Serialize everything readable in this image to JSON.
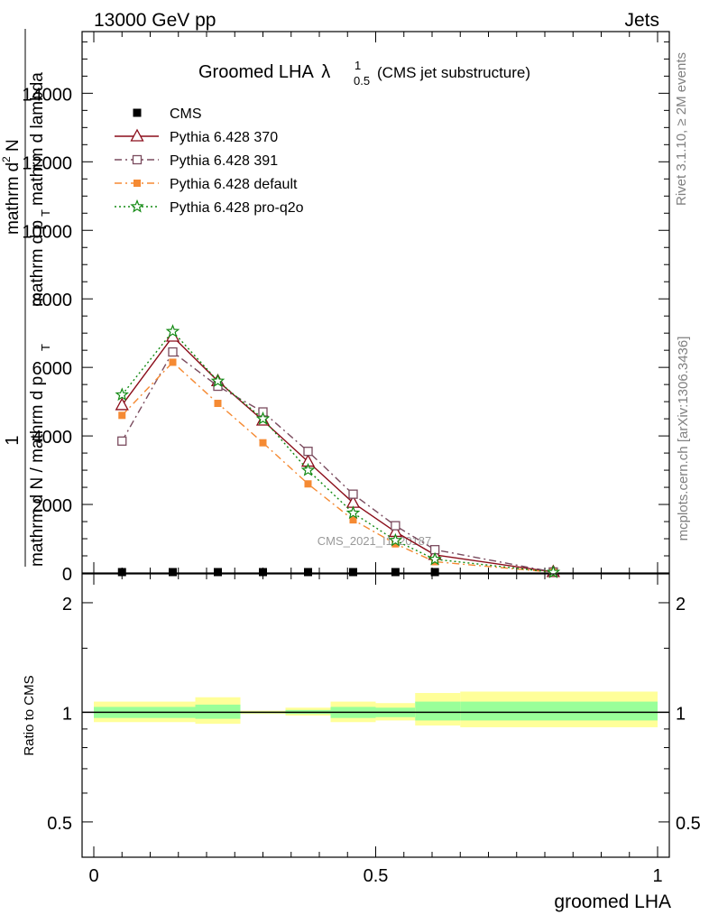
{
  "header": {
    "left": "13000 GeV pp",
    "right": "Jets"
  },
  "title": {
    "main": "Groomed LHA",
    "lambda": "λ",
    "sup": "1",
    "sub": "0.5",
    "suffix": "(CMS jet substructure)"
  },
  "ylabel_main": {
    "num1": "1",
    "den1": "mathrm d N / mathrm d p",
    "den1_sub": "T",
    "num2": "mathrm d",
    "num2_sup": "2",
    "num2_rest": "N",
    "den2": "mathrm d p",
    "den2_sub": "T",
    "den2_rest": " mathrm d lambda"
  },
  "ylabel_ratio": "Ratio to CMS",
  "xlabel": "groomed LHA",
  "side_right": "Rivet 3.1.10, ≥ 2M events",
  "side_right2": "mcplots.cern.ch [arXiv:1306.3436]",
  "watermark": "CMS_2021_I1920187",
  "colors": {
    "pythia370": "#8b0d1a",
    "pythia391": "#7a4b5e",
    "pythia_default": "#f58a33",
    "pythia_proq2o": "#138a13",
    "band_outer": "#ffff99",
    "band_inner": "#99ff99"
  },
  "chart_data": [
    {
      "type": "line",
      "title": "Groomed LHA λ^1_0.5 (CMS jet substructure)",
      "xlim": [
        0,
        1
      ],
      "ylim": [
        0,
        15800
      ],
      "yticks": [
        0,
        2000,
        4000,
        6000,
        8000,
        10000,
        12000,
        14000
      ],
      "ytick_labels": [
        "0",
        "2000",
        "4000",
        "6000",
        "8000",
        "10000",
        "12000",
        "14000"
      ],
      "x": [
        0.05,
        0.14,
        0.22,
        0.3,
        0.38,
        0.46,
        0.535,
        0.605,
        0.815
      ],
      "series": [
        {
          "name": "CMS",
          "marker": "square-filled",
          "values": [
            0,
            0,
            0,
            0,
            0,
            0,
            0,
            0,
            0
          ]
        },
        {
          "name": "Pythia 6.428 370",
          "marker": "triangle-open",
          "dash": "solid",
          "values": [
            4900,
            6900,
            5600,
            4450,
            3250,
            2050,
            1200,
            530,
            30
          ]
        },
        {
          "name": "Pythia 6.428 391",
          "marker": "square-open",
          "dash": "dashdot",
          "values": [
            3850,
            6450,
            5450,
            4700,
            3550,
            2300,
            1380,
            680,
            30
          ]
        },
        {
          "name": "Pythia 6.428 default",
          "marker": "square-filled-small",
          "dash": "dashdot",
          "values": [
            4600,
            6150,
            4950,
            3800,
            2600,
            1550,
            850,
            330,
            20
          ]
        },
        {
          "name": "Pythia 6.428 pro-q2o",
          "marker": "star-open",
          "dash": "dotted",
          "values": [
            5200,
            7050,
            5600,
            4500,
            3000,
            1750,
            950,
            400,
            20
          ]
        }
      ]
    },
    {
      "type": "area",
      "ylabel": "Ratio to CMS",
      "xlabel": "groomed LHA",
      "xlim": [
        0,
        1
      ],
      "ylim": [
        0.4,
        2.4
      ],
      "scale": "log",
      "xticks": [
        0,
        0.5,
        1
      ],
      "xtick_labels": [
        "0",
        "0.5",
        "1"
      ],
      "yticks": [
        0.5,
        1,
        2
      ],
      "ytick_labels": [
        "0.5",
        "1",
        "2"
      ],
      "bands": [
        {
          "x0": 0.0,
          "x1": 0.18,
          "outer": [
            0.94,
            1.07
          ],
          "inner": [
            0.965,
            1.035
          ]
        },
        {
          "x0": 0.18,
          "x1": 0.26,
          "outer": [
            0.93,
            1.1
          ],
          "inner": [
            0.96,
            1.05
          ]
        },
        {
          "x0": 0.26,
          "x1": 0.34,
          "outer": [
            0.99,
            1.01
          ],
          "inner": [
            0.995,
            1.005
          ]
        },
        {
          "x0": 0.34,
          "x1": 0.42,
          "outer": [
            0.98,
            1.03
          ],
          "inner": [
            0.99,
            1.015
          ]
        },
        {
          "x0": 0.42,
          "x1": 0.5,
          "outer": [
            0.94,
            1.07
          ],
          "inner": [
            0.965,
            1.035
          ]
        },
        {
          "x0": 0.5,
          "x1": 0.57,
          "outer": [
            0.95,
            1.06
          ],
          "inner": [
            0.97,
            1.03
          ]
        },
        {
          "x0": 0.57,
          "x1": 0.65,
          "outer": [
            0.92,
            1.13
          ],
          "inner": [
            0.95,
            1.07
          ]
        },
        {
          "x0": 0.65,
          "x1": 1.0,
          "outer": [
            0.91,
            1.14
          ],
          "inner": [
            0.95,
            1.07
          ]
        }
      ]
    }
  ]
}
